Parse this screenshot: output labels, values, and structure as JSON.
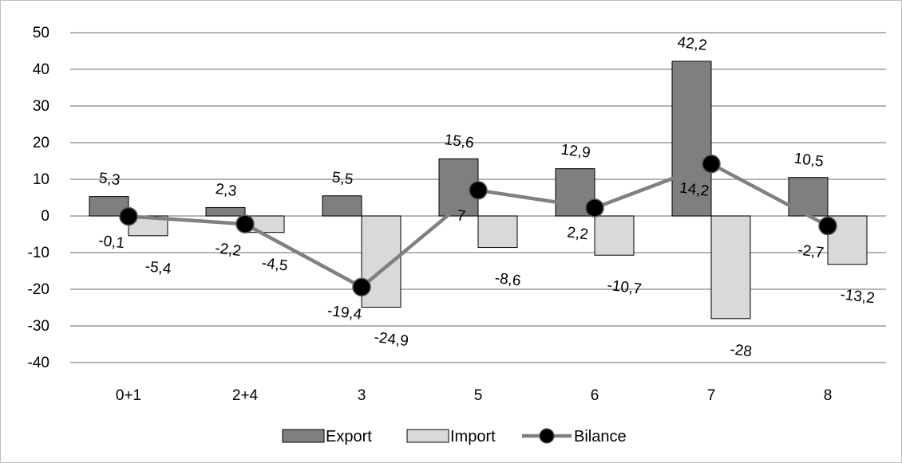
{
  "chart_data": {
    "type": "bar",
    "categories": [
      "0+1",
      "2+4",
      "3",
      "5",
      "6",
      "7",
      "8"
    ],
    "series": [
      {
        "name": "Export",
        "kind": "bar",
        "color": "#7f7f7f",
        "values": [
          5.3,
          2.3,
          5.5,
          15.6,
          12.9,
          42.2,
          10.5
        ],
        "labels": [
          "5,3",
          "2,3",
          "5,5",
          "15,6",
          "12,9",
          "42,2",
          "10,5"
        ]
      },
      {
        "name": "Import",
        "kind": "bar",
        "color": "#d9d9d9",
        "values": [
          -5.4,
          -4.5,
          -24.9,
          -8.6,
          -10.7,
          -28,
          -13.2
        ],
        "labels": [
          "-5,4",
          "-4,5",
          "-24,9",
          "-8,6",
          "-10,7",
          "-28",
          "-13,2"
        ]
      },
      {
        "name": "Bilance",
        "kind": "line",
        "color": "#808080",
        "values": [
          -0.1,
          -2.2,
          -19.4,
          7,
          2.2,
          14.2,
          -2.7
        ],
        "labels": [
          "-0,1",
          "-2,2",
          "-19,4",
          "7",
          "2,2",
          "14,2",
          "-2,7"
        ]
      }
    ],
    "yticks": [
      "50",
      "40",
      "30",
      "20",
      "10",
      "0",
      "-10",
      "-20",
      "-30",
      "-40"
    ],
    "ylim": [
      -40,
      50
    ],
    "grid": true,
    "legend": "bottom",
    "title": "",
    "xlabel": "",
    "ylabel": ""
  }
}
